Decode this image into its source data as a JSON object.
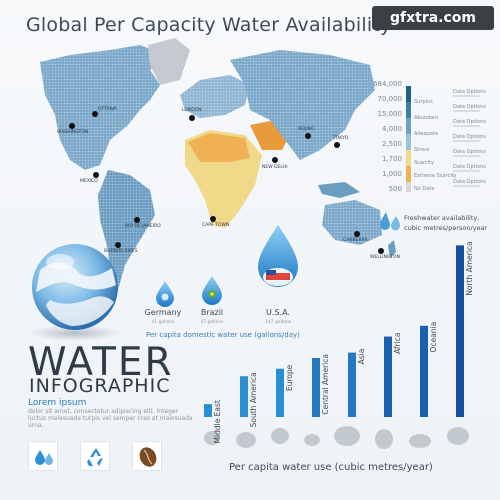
{
  "title": "Global Per Capacity Water Availability",
  "watermark": "gfxtra.com",
  "map": {
    "cities": [
      "WASHINGTON",
      "OTTAWA",
      "LONDON",
      "MEXICO",
      "RIO DE JANEIRO",
      "BUENOS AIRES",
      "BEIJING",
      "TOKYO",
      "CANBERRA",
      "NEW DELHI",
      "CAPE TOWN",
      "WELLINGTON"
    ]
  },
  "scale": {
    "values": [
      "684,000",
      "70,000",
      "15,000",
      "4,000",
      "2,500",
      "1,700",
      "1,000",
      "500"
    ],
    "categories": [
      "Surplus",
      "Abundant",
      "Adequate",
      "Stress",
      "Scarcity",
      "Extreme Scarcity",
      "No Data"
    ],
    "option_label": "Data Options",
    "colors": [
      "#1f5f8f",
      "#3a7fae",
      "#6aa3c8",
      "#9cc3dc",
      "#f1d98a",
      "#f0b155",
      "#d8d8d8"
    ]
  },
  "freshwater_label": [
    "Freshwater availability,",
    "cubic metres/person/year"
  ],
  "domestic": {
    "caption": "Per capita domestic water use (gallons/day)",
    "items": [
      {
        "country": "Germany",
        "gallons": "41 gallons"
      },
      {
        "country": "Brazil",
        "gallons": "47 gallons"
      },
      {
        "country": "U.S.A.",
        "gallons": "147 gallons"
      }
    ]
  },
  "headline": {
    "word": "WATER",
    "sub": "INFOGRAPHIC",
    "lorem_title": "Lorem ipsum",
    "lorem_body": "dolor sit amet, consectetur adipiscing elit. Integer luctus malesuada turpis vel semper cras at malesuada urna."
  },
  "icons": [
    "water-drops-icon",
    "recycle-icon",
    "coffee-bean-icon"
  ],
  "chart_data": {
    "type": "bar",
    "title": "",
    "xlabel": "Per capita water use (cubic metres/year)",
    "ylabel": "",
    "categories": [
      "Middle East",
      "South America",
      "Europe",
      "Central America",
      "Asia",
      "Africa",
      "Oceania",
      "North America"
    ],
    "values": [
      12,
      38,
      45,
      55,
      60,
      75,
      85,
      160
    ],
    "ylim": [
      0,
      165
    ],
    "grid": false,
    "colors": [
      "#2a8fd0",
      "#2a8fd0",
      "#2a8fd0",
      "#2479c0",
      "#2479c0",
      "#1a62b0",
      "#1a62b0",
      "#174fa0"
    ]
  }
}
